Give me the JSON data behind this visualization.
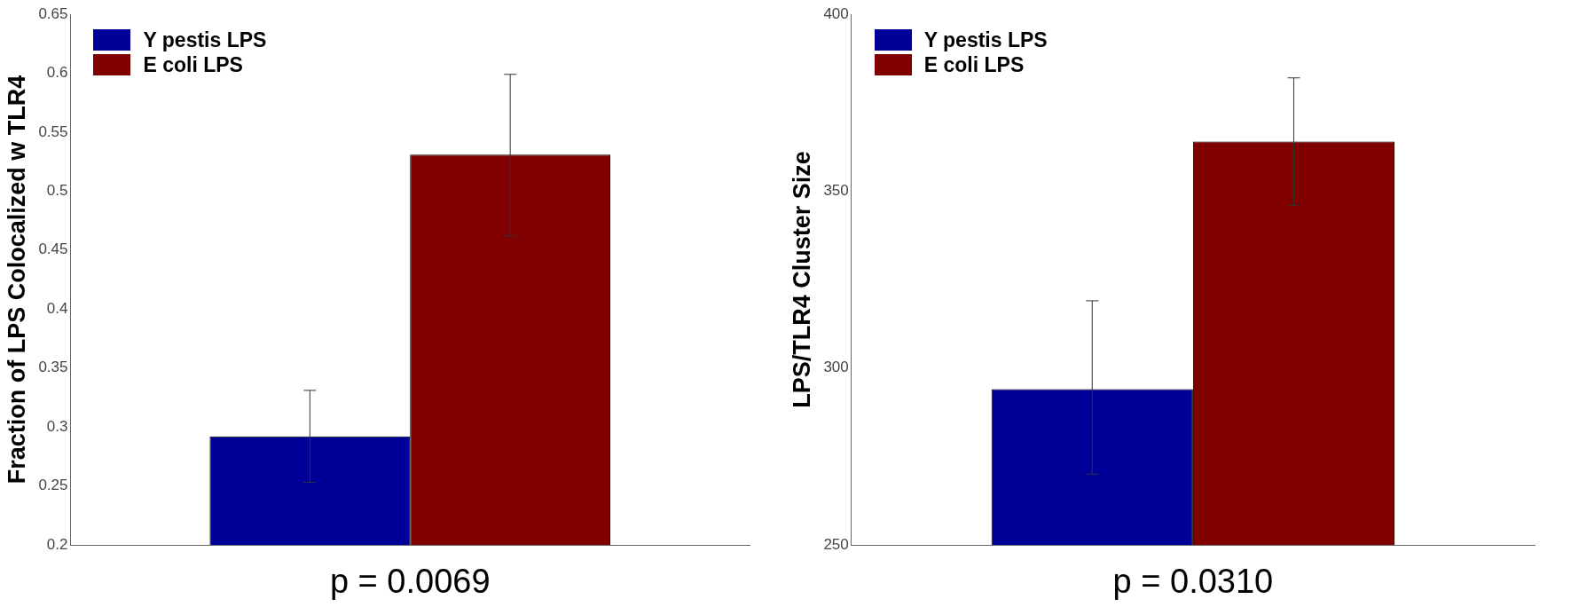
{
  "chart_data": [
    {
      "type": "bar",
      "categories": [
        null
      ],
      "ylabel": "Fraction of LPS Colocalized w TLR4",
      "xlabel": "p = 0.0069",
      "ylim": [
        0.2,
        0.65
      ],
      "yticks": [
        0.2,
        0.25,
        0.3,
        0.35,
        0.4,
        0.45,
        0.5,
        0.55,
        0.6,
        0.65
      ],
      "grid": false,
      "legend": "top left",
      "series": [
        {
          "name": "Y pestis LPS",
          "color": "#000099",
          "values": [
            0.292
          ],
          "errors": [
            [
              0.253,
              0.331
            ]
          ]
        },
        {
          "name": "E coli LPS",
          "color": "#800000",
          "values": [
            0.531
          ],
          "errors": [
            [
              0.462,
              0.599
            ]
          ]
        }
      ]
    },
    {
      "type": "bar",
      "categories": [
        null
      ],
      "ylabel": "LPS/TLR4 Cluster Size",
      "xlabel": "p = 0.0310",
      "ylim": [
        250,
        400
      ],
      "yticks": [
        250,
        300,
        350,
        400
      ],
      "grid": false,
      "legend": "top left",
      "series": [
        {
          "name": "Y pestis LPS",
          "color": "#000099",
          "values": [
            294
          ],
          "errors": [
            [
              270,
              319
            ]
          ]
        },
        {
          "name": "E coli LPS",
          "color": "#800000",
          "values": [
            364
          ],
          "errors": [
            [
              346,
              382
            ]
          ]
        }
      ]
    }
  ]
}
